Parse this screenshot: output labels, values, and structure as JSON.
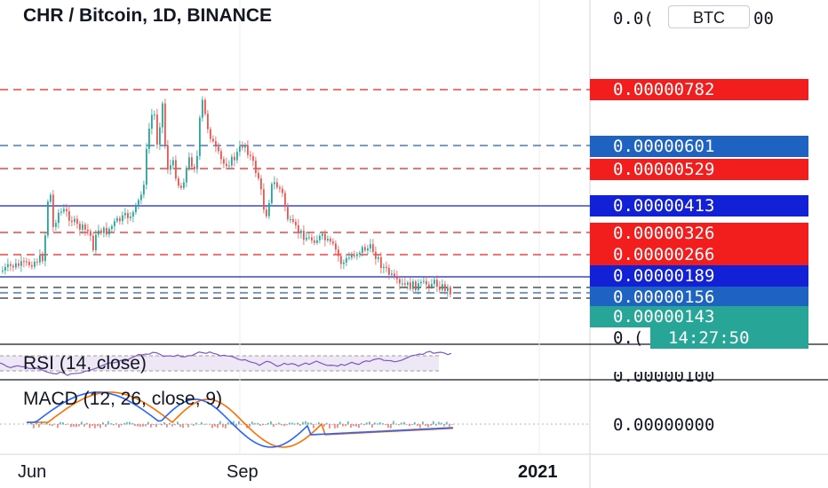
{
  "header": {
    "title": "CHR / Bitcoin, 1D, BINANCE",
    "currency_badge": "BTC"
  },
  "price_axis": {
    "top_label_partial_left": "0.0(",
    "top_label_partial_right": "00",
    "bottom_label_partial": "0.(",
    "rsi_overlap_label": "0.00000100",
    "macd_zero_label": "0.00000000"
  },
  "price_tags": [
    {
      "id": "r782",
      "text": "0.00000782",
      "color": "#f21e1e"
    },
    {
      "id": "b601",
      "text": "0.00000601",
      "color": "#1e62c2"
    },
    {
      "id": "r529",
      "text": "0.00000529",
      "color": "#f21e1e"
    },
    {
      "id": "b413",
      "text": "0.00000413",
      "color": "#1221d6"
    },
    {
      "id": "r326",
      "text": "0.00000326",
      "color": "#f21e1e"
    },
    {
      "id": "r266",
      "text": "0.00000266",
      "color": "#f21e1e"
    },
    {
      "id": "b189",
      "text": "0.00000189",
      "color": "#1221d6"
    },
    {
      "id": "b156",
      "text": "0.00000156",
      "color": "#1e62c2"
    },
    {
      "id": "t143",
      "text": "0.00000143",
      "color": "#27a597"
    }
  ],
  "countdown": "14:27:50",
  "indicators": {
    "rsi_label": "RSI (14, close)",
    "macd_label": "MACD (12, 26, close, 9)"
  },
  "x_axis": {
    "labels": [
      "Jun",
      "Sep",
      "2021"
    ]
  },
  "colors": {
    "up": "#26a69a",
    "down": "#ef5350",
    "rsi": "#7e57c2",
    "macd": "#2962ff",
    "signal": "#ff6d00"
  }
}
